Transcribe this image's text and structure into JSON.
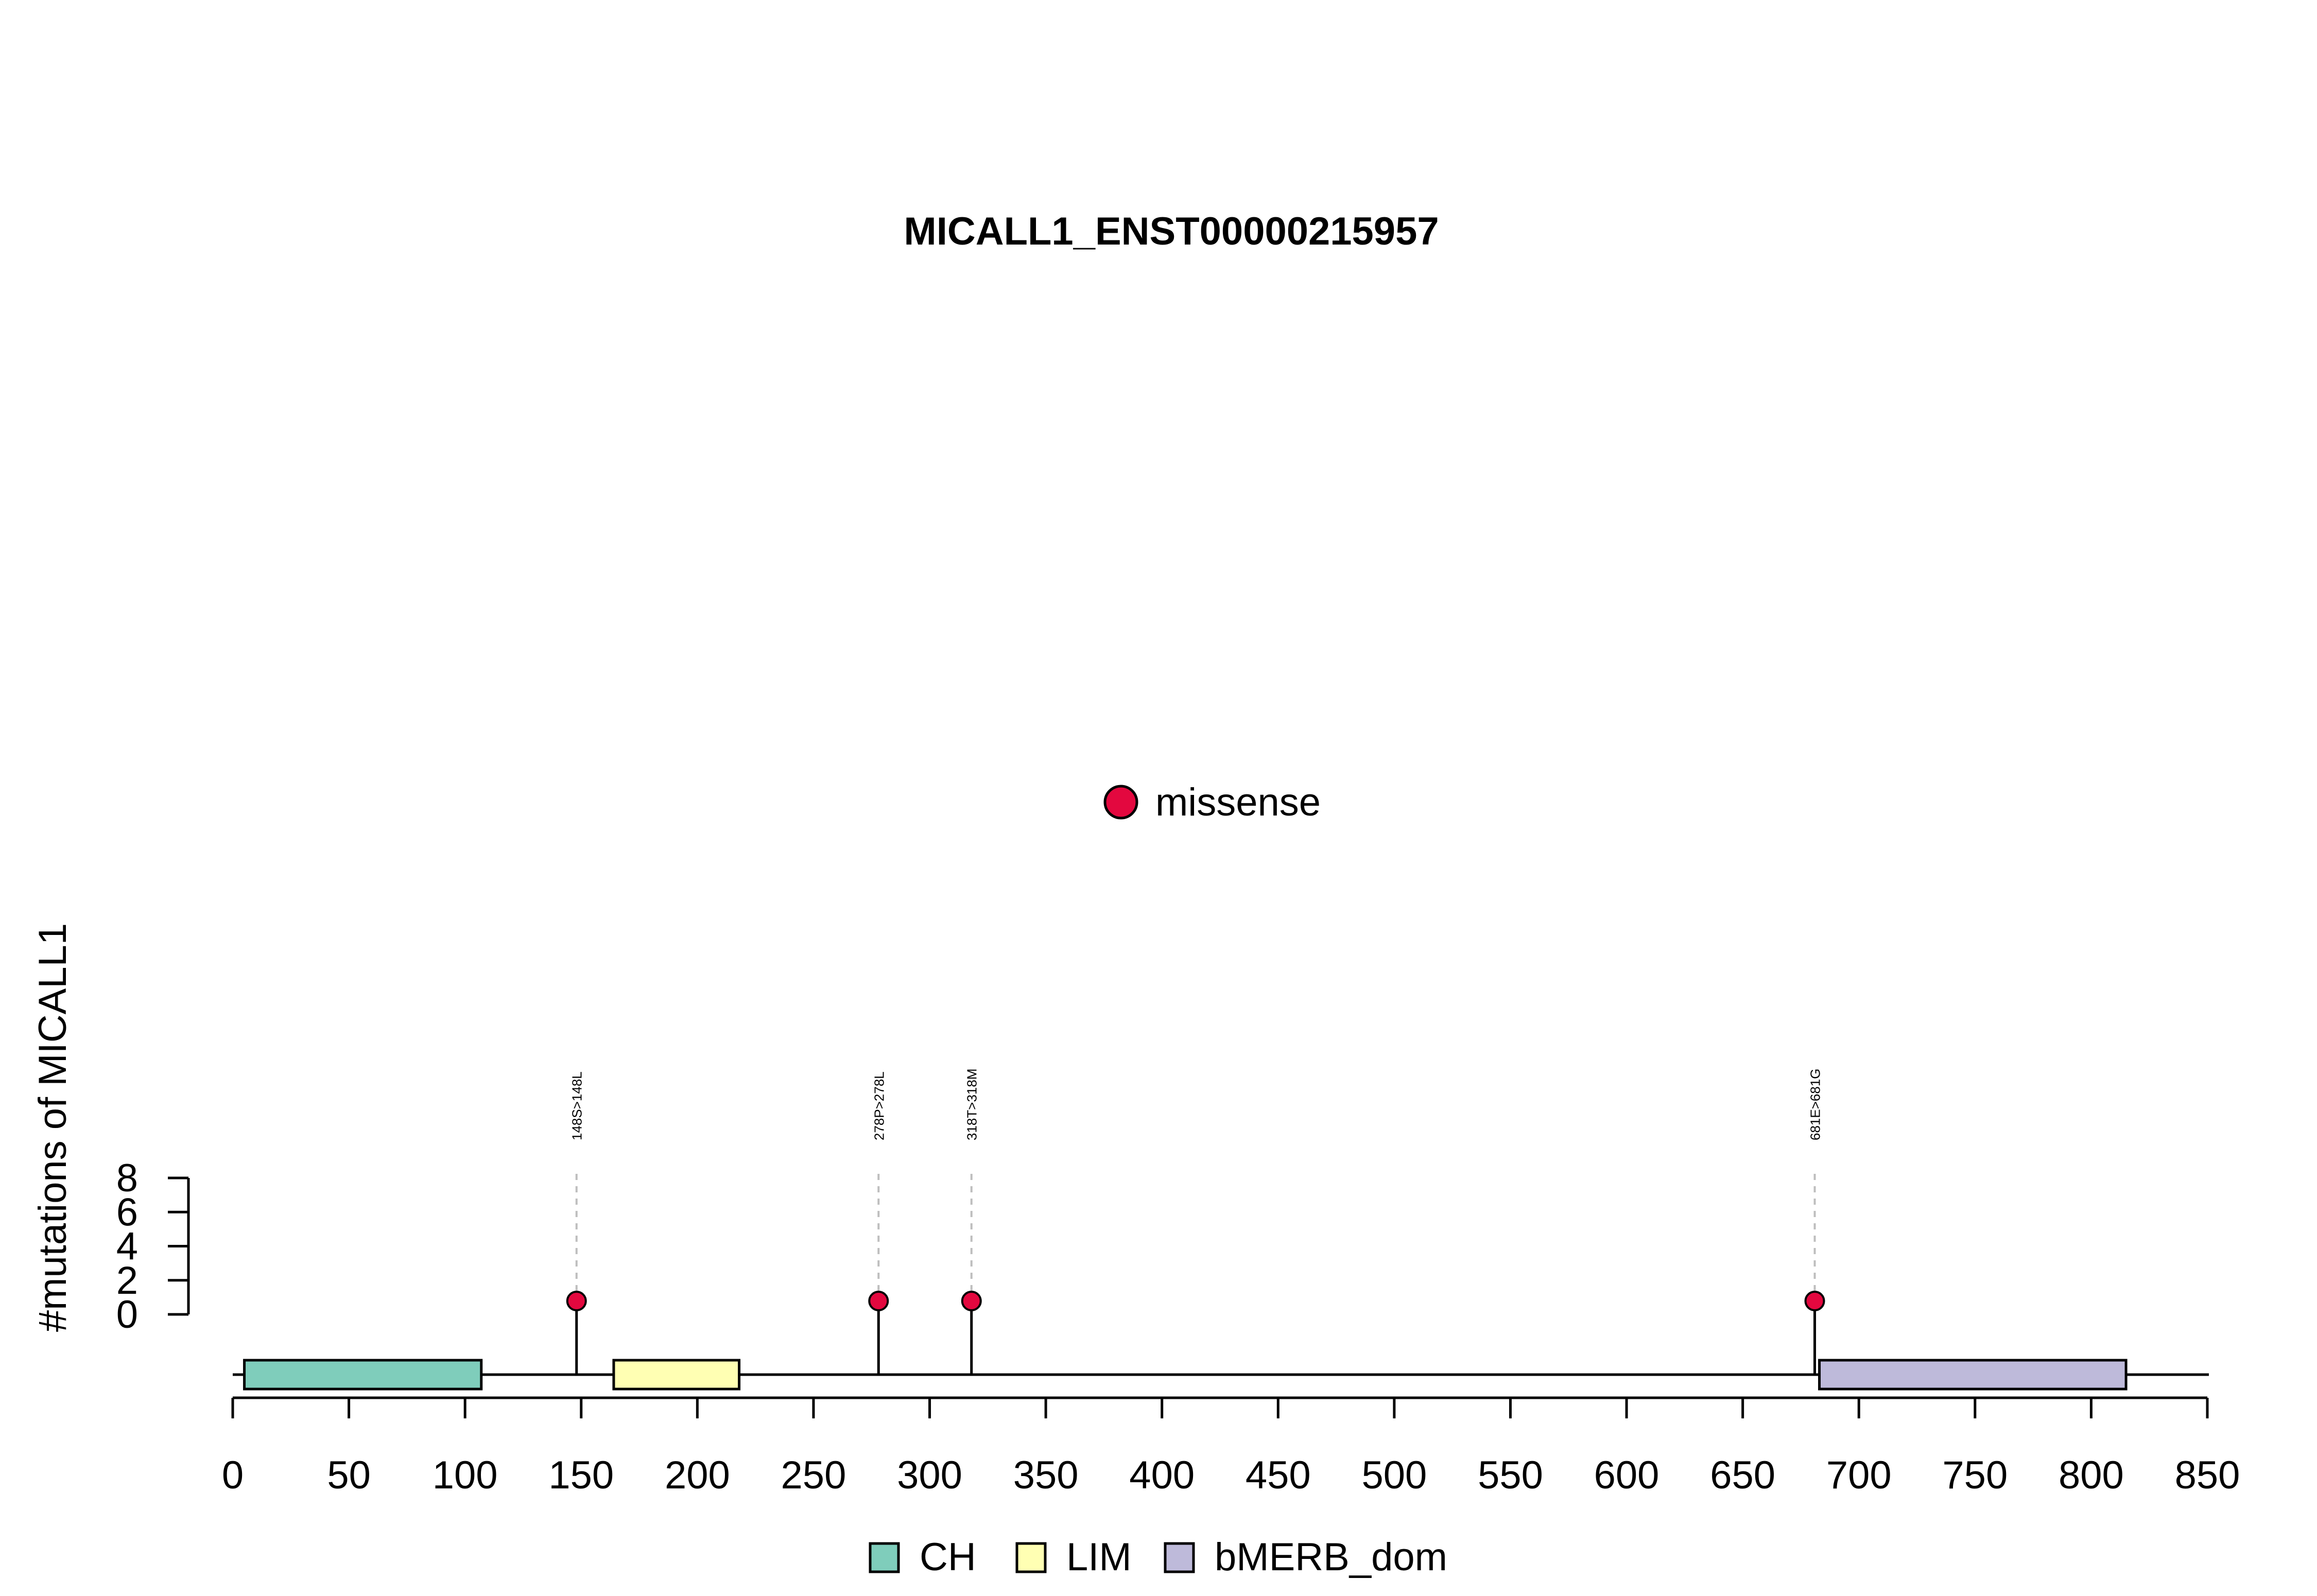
{
  "chart_data": {
    "type": "lollipop",
    "title": "MICALL1_ENST00000215957",
    "ylabel": "#mutations of MICALL1",
    "xlabel": "",
    "xlim": [
      0,
      850
    ],
    "x_ticks": [
      0,
      50,
      100,
      150,
      200,
      250,
      300,
      350,
      400,
      450,
      500,
      550,
      600,
      650,
      700,
      750,
      800,
      850
    ],
    "y_ticks": [
      0,
      2,
      4,
      6,
      8
    ],
    "ylim": [
      0,
      8
    ],
    "protein_length": 850,
    "mutation_legend": [
      {
        "label": "missense",
        "color": "#E3083F"
      }
    ],
    "mutations": [
      {
        "position": 148,
        "label": "148S>148L",
        "count": 1,
        "type": "missense"
      },
      {
        "position": 278,
        "label": "278P>278L",
        "count": 1,
        "type": "missense"
      },
      {
        "position": 318,
        "label": "318T>318M",
        "count": 1,
        "type": "missense"
      },
      {
        "position": 681,
        "label": "681E>681G",
        "count": 1,
        "type": "missense"
      }
    ],
    "domains": [
      {
        "name": "CH",
        "start": 5,
        "end": 107,
        "color": "#7FCDBB"
      },
      {
        "name": "LIM",
        "start": 164,
        "end": 218,
        "color": "#FFFFB3"
      },
      {
        "name": "bMERB_dom",
        "start": 683,
        "end": 815,
        "color": "#BEBADA"
      }
    ],
    "domain_legend": [
      "CH",
      "LIM",
      "bMERB_dom"
    ]
  }
}
